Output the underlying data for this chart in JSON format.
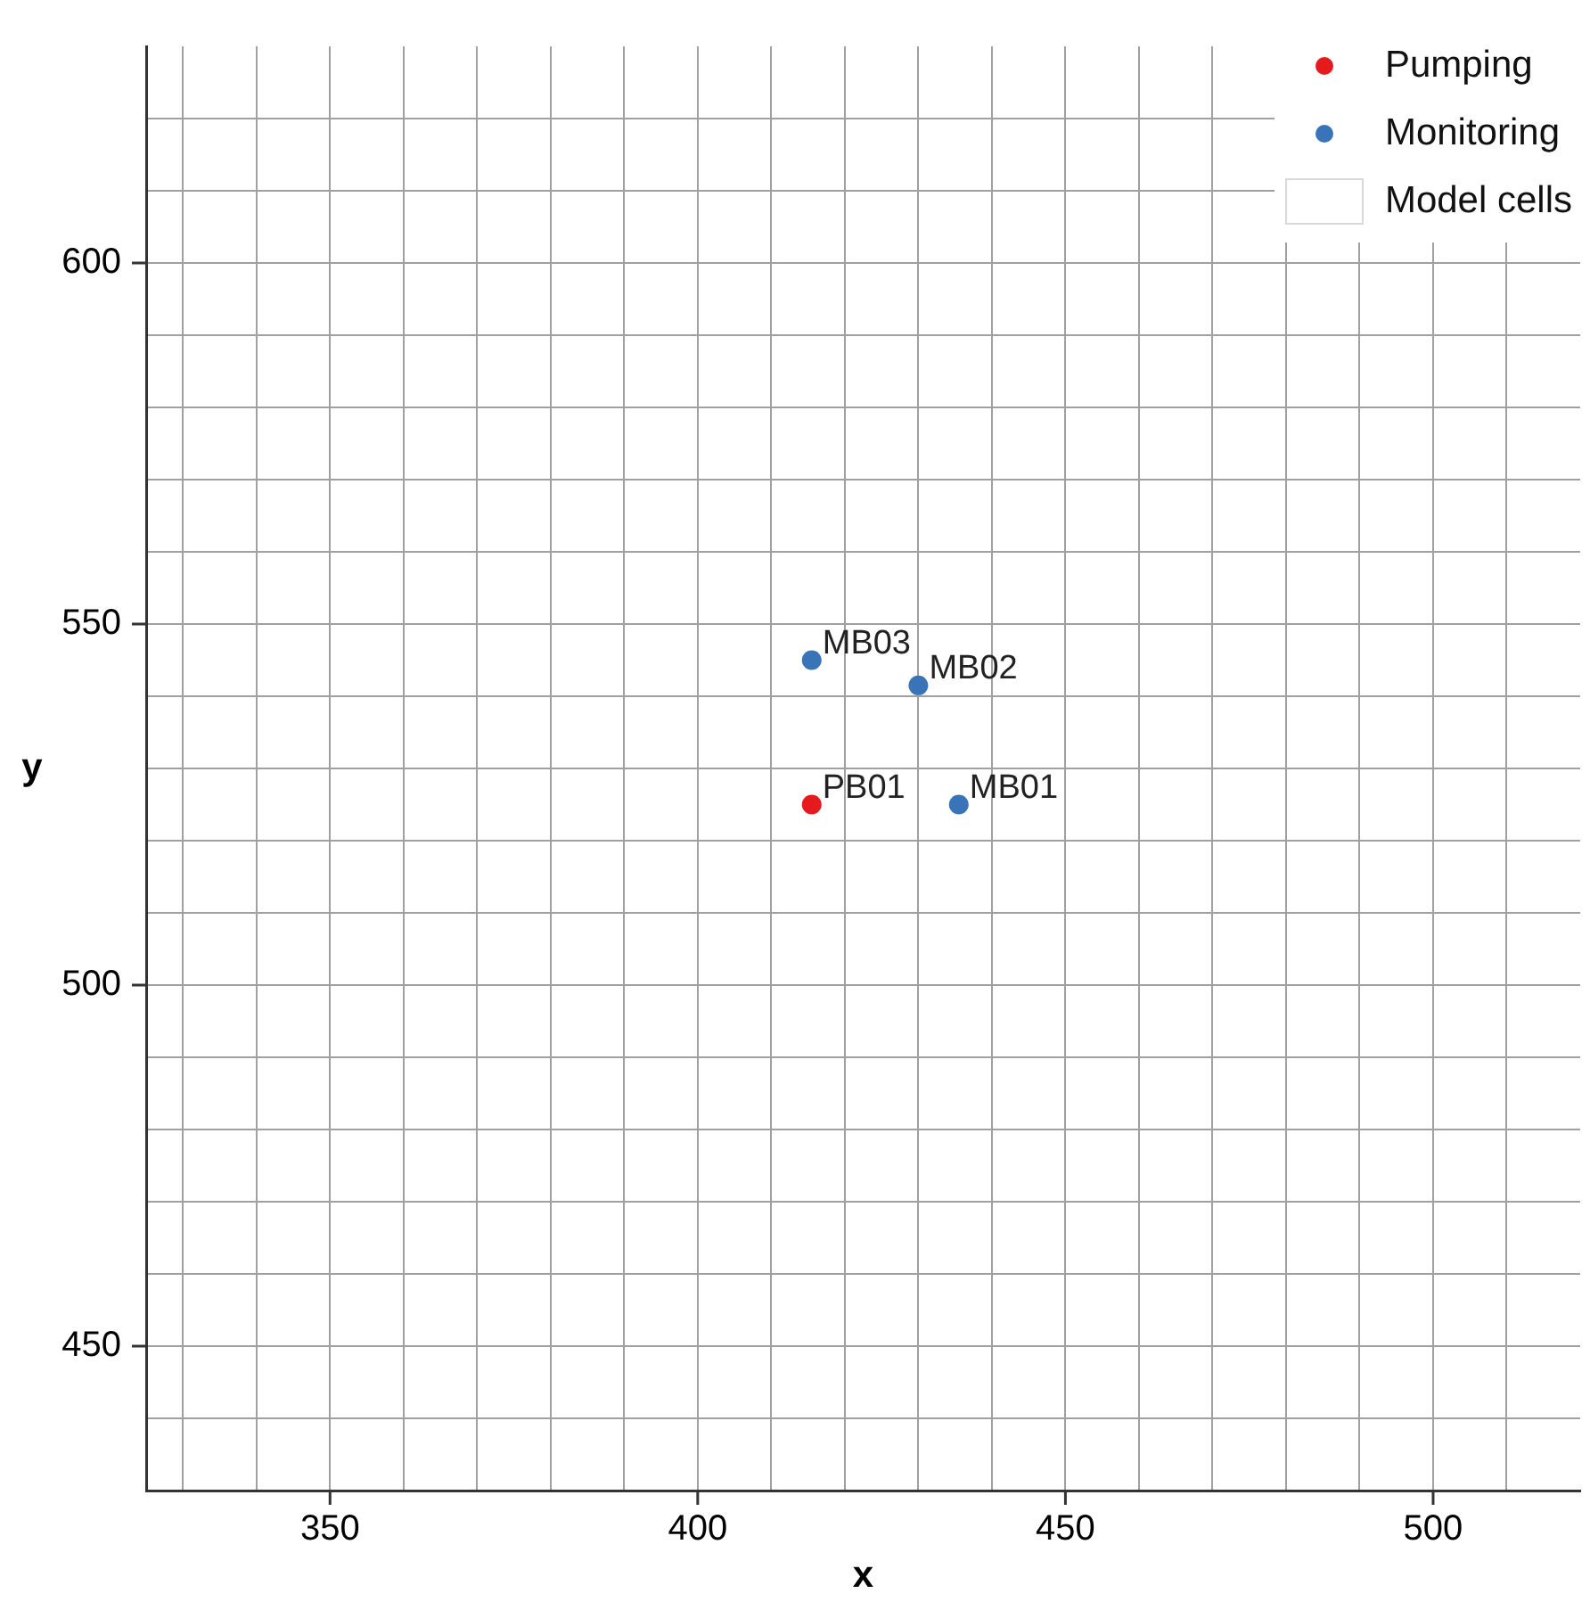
{
  "chart_data": {
    "type": "scatter",
    "xlabel": "x",
    "ylabel": "y",
    "xlim": [
      325,
      520
    ],
    "ylim": [
      430,
      630
    ],
    "xticks": [
      {
        "value": 330,
        "label": null
      },
      {
        "value": 340,
        "label": null
      },
      350,
      {
        "value": 360,
        "label": null
      },
      {
        "value": 370,
        "label": null
      },
      {
        "value": 380,
        "label": null
      },
      {
        "value": 390,
        "label": null
      },
      400,
      {
        "value": 410,
        "label": null
      },
      {
        "value": 420,
        "label": null
      },
      {
        "value": 430,
        "label": null
      },
      {
        "value": 440,
        "label": null
      },
      450,
      {
        "value": 460,
        "label": null
      },
      {
        "value": 470,
        "label": null
      },
      {
        "value": 480,
        "label": null
      },
      {
        "value": 490,
        "label": null
      },
      500,
      {
        "value": 510,
        "label": null
      }
    ],
    "yticks": [
      {
        "value": 440,
        "label": null
      },
      450,
      {
        "value": 460,
        "label": null
      },
      {
        "value": 470,
        "label": null
      },
      {
        "value": 480,
        "label": null
      },
      {
        "value": 490,
        "label": null
      },
      500,
      {
        "value": 510,
        "label": null
      },
      {
        "value": 520,
        "label": null
      },
      {
        "value": 530,
        "label": null
      },
      {
        "value": 540,
        "label": null
      },
      550,
      {
        "value": 560,
        "label": null
      },
      {
        "value": 570,
        "label": null
      },
      {
        "value": 580,
        "label": null
      },
      {
        "value": 590,
        "label": null
      },
      600,
      {
        "value": 610,
        "label": null
      },
      {
        "value": 620,
        "label": null
      }
    ],
    "grid": true,
    "legend": "top right",
    "marker": "circle",
    "series": [
      {
        "name": "Pumping",
        "color": "#e41a1c",
        "x": [
          415.5
        ],
        "values": [
          525
        ]
      },
      {
        "name": "Monitoring",
        "color": "#3a74b8",
        "x": [
          435.5,
          430,
          415.5
        ],
        "values": [
          525,
          541.5,
          545
        ]
      },
      {
        "name": "Model cells",
        "type": "other",
        "color": "#d9d9d9"
      }
    ],
    "annotations": [
      {
        "text": "PB01",
        "x": 415.5,
        "y": 525
      },
      {
        "text": "MB01",
        "x": 435.5,
        "y": 525
      },
      {
        "text": "MB02",
        "x": 430,
        "y": 541.5
      },
      {
        "text": "MB03",
        "x": 415.5,
        "y": 545
      }
    ]
  }
}
